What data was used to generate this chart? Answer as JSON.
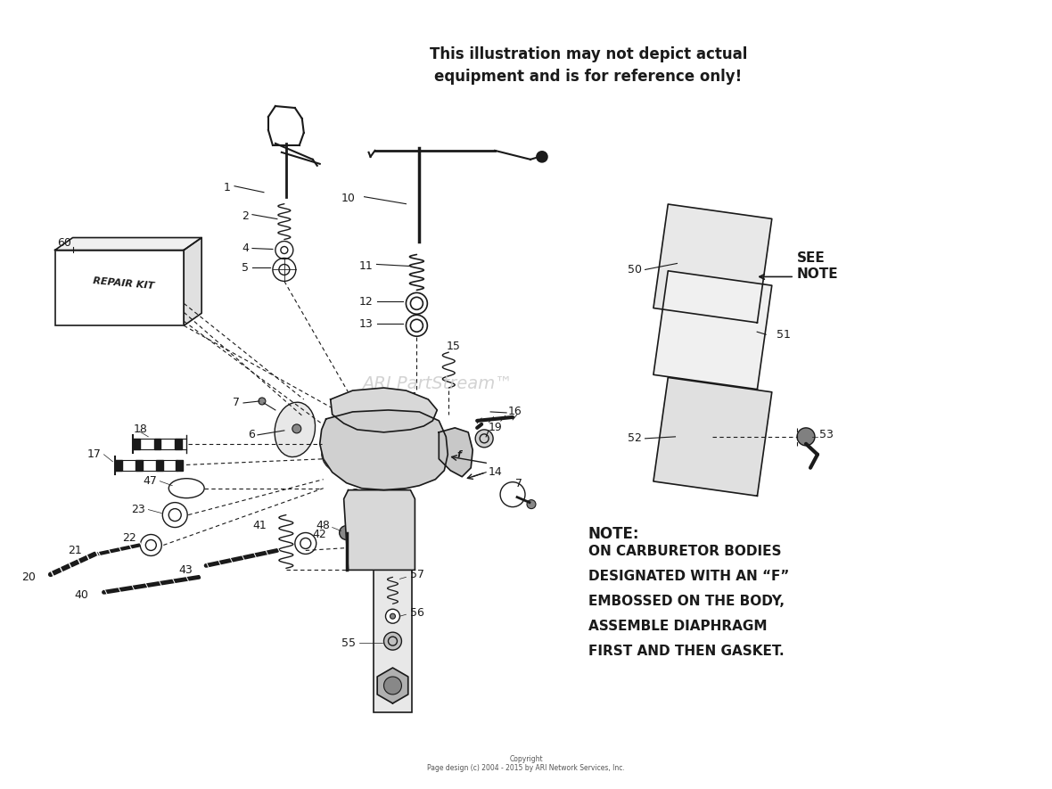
{
  "bg_color": "#ffffff",
  "fig_width": 11.8,
  "fig_height": 8.85,
  "dpi": 100,
  "title_line1": "This illustration may not depict actual",
  "title_line2": "equipment and is for reference only!",
  "watermark": "ARI PartStream™",
  "note_header": "NOTE:",
  "note_body_lines": [
    "ON CARBURETOR BODIES",
    "DESIGNATED WITH AN “F”",
    "EMBOSSED ON THE BODY,",
    "ASSEMBLE DIAPHRAGM",
    "FIRST AND THEN GASKET."
  ],
  "see_note_text": "SEE\nNOTE",
  "repair_kit_text": "REPAIR KIT",
  "copyright_text": "Copyright\nPage design (c) 2004 - 2015 by ARI Network Services, Inc.",
  "color": "#1a1a1a",
  "gray": "#888888",
  "lightgray": "#cccccc",
  "watermark_color": "#c8c8c8"
}
